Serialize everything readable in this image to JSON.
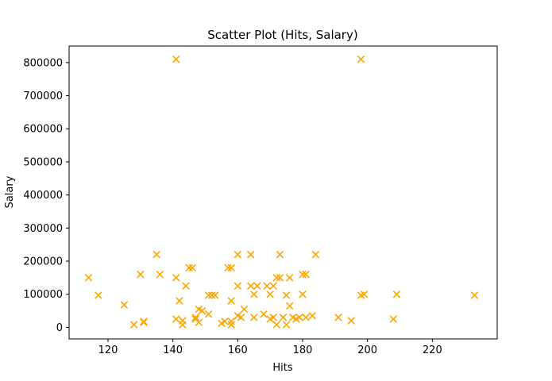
{
  "chart_data": {
    "type": "scatter",
    "title": "Scatter Plot (Hits, Salary)",
    "xlabel": "Hits",
    "ylabel": "Salary",
    "xlim": [
      108,
      240
    ],
    "ylim": [
      -35000,
      850000
    ],
    "xticks": [
      120,
      140,
      160,
      180,
      200,
      220
    ],
    "yticks": [
      0,
      100000,
      200000,
      300000,
      400000,
      500000,
      600000,
      700000,
      800000
    ],
    "grid": false,
    "marker": "x",
    "color": "#ffa500",
    "series": [
      {
        "points": [
          [
            141,
            810000
          ],
          [
            198,
            810000
          ],
          [
            114,
            150000
          ],
          [
            117,
            97000
          ],
          [
            125,
            68000
          ],
          [
            128,
            8000
          ],
          [
            130,
            160000
          ],
          [
            131,
            15000
          ],
          [
            131,
            18000
          ],
          [
            135,
            220000
          ],
          [
            136,
            160000
          ],
          [
            141,
            150000
          ],
          [
            141,
            25000
          ],
          [
            142,
            80000
          ],
          [
            143,
            20000
          ],
          [
            143,
            8000
          ],
          [
            144,
            125000
          ],
          [
            145,
            180000
          ],
          [
            146,
            180000
          ],
          [
            147,
            30000
          ],
          [
            147,
            25000
          ],
          [
            148,
            55000
          ],
          [
            148,
            15000
          ],
          [
            149,
            50000
          ],
          [
            151,
            40000
          ],
          [
            151,
            97000
          ],
          [
            152,
            97000
          ],
          [
            153,
            97000
          ],
          [
            155,
            12000
          ],
          [
            156,
            18000
          ],
          [
            157,
            180000
          ],
          [
            158,
            180000
          ],
          [
            158,
            80000
          ],
          [
            158,
            8000
          ],
          [
            158,
            18000
          ],
          [
            160,
            220000
          ],
          [
            160,
            125000
          ],
          [
            160,
            35000
          ],
          [
            161,
            30000
          ],
          [
            162,
            55000
          ],
          [
            164,
            220000
          ],
          [
            164,
            125000
          ],
          [
            165,
            30000
          ],
          [
            165,
            100000
          ],
          [
            166,
            125000
          ],
          [
            168,
            40000
          ],
          [
            169,
            125000
          ],
          [
            170,
            100000
          ],
          [
            170,
            25000
          ],
          [
            171,
            125000
          ],
          [
            171,
            30000
          ],
          [
            172,
            150000
          ],
          [
            172,
            8000
          ],
          [
            173,
            150000
          ],
          [
            173,
            220000
          ],
          [
            174,
            30000
          ],
          [
            175,
            97000
          ],
          [
            175,
            8000
          ],
          [
            176,
            150000
          ],
          [
            176,
            65000
          ],
          [
            177,
            30000
          ],
          [
            178,
            25000
          ],
          [
            179,
            30000
          ],
          [
            180,
            160000
          ],
          [
            180,
            100000
          ],
          [
            181,
            160000
          ],
          [
            181,
            30000
          ],
          [
            183,
            35000
          ],
          [
            184,
            220000
          ],
          [
            191,
            30000
          ],
          [
            195,
            20000
          ],
          [
            198,
            97000
          ],
          [
            199,
            100000
          ],
          [
            208,
            25000
          ],
          [
            209,
            100000
          ],
          [
            233,
            97000
          ]
        ]
      }
    ]
  }
}
